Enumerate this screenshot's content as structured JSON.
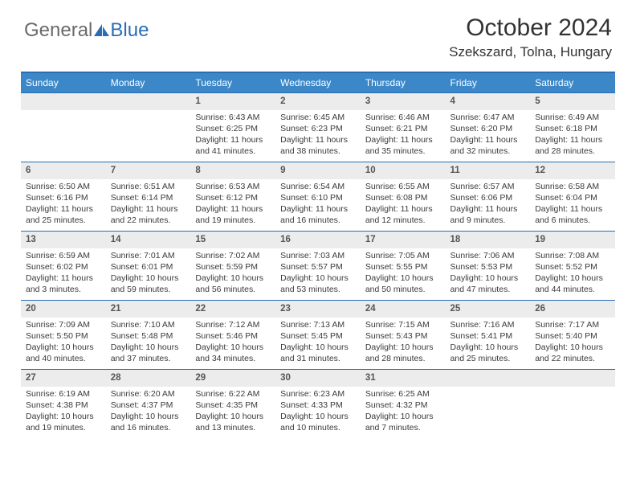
{
  "brand": {
    "part1": "General",
    "part2": "Blue"
  },
  "title": "October 2024",
  "location": "Szekszard, Tolna, Hungary",
  "colors": {
    "header_bg": "#3b87c8",
    "accent": "#2a6db5",
    "daynum_bg": "#ececec"
  },
  "weekdays": [
    "Sunday",
    "Monday",
    "Tuesday",
    "Wednesday",
    "Thursday",
    "Friday",
    "Saturday"
  ],
  "first_day_index": 2,
  "days": [
    {
      "n": 1,
      "sunrise": "6:43 AM",
      "sunset": "6:25 PM",
      "daylight": "11 hours and 41 minutes."
    },
    {
      "n": 2,
      "sunrise": "6:45 AM",
      "sunset": "6:23 PM",
      "daylight": "11 hours and 38 minutes."
    },
    {
      "n": 3,
      "sunrise": "6:46 AM",
      "sunset": "6:21 PM",
      "daylight": "11 hours and 35 minutes."
    },
    {
      "n": 4,
      "sunrise": "6:47 AM",
      "sunset": "6:20 PM",
      "daylight": "11 hours and 32 minutes."
    },
    {
      "n": 5,
      "sunrise": "6:49 AM",
      "sunset": "6:18 PM",
      "daylight": "11 hours and 28 minutes."
    },
    {
      "n": 6,
      "sunrise": "6:50 AM",
      "sunset": "6:16 PM",
      "daylight": "11 hours and 25 minutes."
    },
    {
      "n": 7,
      "sunrise": "6:51 AM",
      "sunset": "6:14 PM",
      "daylight": "11 hours and 22 minutes."
    },
    {
      "n": 8,
      "sunrise": "6:53 AM",
      "sunset": "6:12 PM",
      "daylight": "11 hours and 19 minutes."
    },
    {
      "n": 9,
      "sunrise": "6:54 AM",
      "sunset": "6:10 PM",
      "daylight": "11 hours and 16 minutes."
    },
    {
      "n": 10,
      "sunrise": "6:55 AM",
      "sunset": "6:08 PM",
      "daylight": "11 hours and 12 minutes."
    },
    {
      "n": 11,
      "sunrise": "6:57 AM",
      "sunset": "6:06 PM",
      "daylight": "11 hours and 9 minutes."
    },
    {
      "n": 12,
      "sunrise": "6:58 AM",
      "sunset": "6:04 PM",
      "daylight": "11 hours and 6 minutes."
    },
    {
      "n": 13,
      "sunrise": "6:59 AM",
      "sunset": "6:02 PM",
      "daylight": "11 hours and 3 minutes."
    },
    {
      "n": 14,
      "sunrise": "7:01 AM",
      "sunset": "6:01 PM",
      "daylight": "10 hours and 59 minutes."
    },
    {
      "n": 15,
      "sunrise": "7:02 AM",
      "sunset": "5:59 PM",
      "daylight": "10 hours and 56 minutes."
    },
    {
      "n": 16,
      "sunrise": "7:03 AM",
      "sunset": "5:57 PM",
      "daylight": "10 hours and 53 minutes."
    },
    {
      "n": 17,
      "sunrise": "7:05 AM",
      "sunset": "5:55 PM",
      "daylight": "10 hours and 50 minutes."
    },
    {
      "n": 18,
      "sunrise": "7:06 AM",
      "sunset": "5:53 PM",
      "daylight": "10 hours and 47 minutes."
    },
    {
      "n": 19,
      "sunrise": "7:08 AM",
      "sunset": "5:52 PM",
      "daylight": "10 hours and 44 minutes."
    },
    {
      "n": 20,
      "sunrise": "7:09 AM",
      "sunset": "5:50 PM",
      "daylight": "10 hours and 40 minutes."
    },
    {
      "n": 21,
      "sunrise": "7:10 AM",
      "sunset": "5:48 PM",
      "daylight": "10 hours and 37 minutes."
    },
    {
      "n": 22,
      "sunrise": "7:12 AM",
      "sunset": "5:46 PM",
      "daylight": "10 hours and 34 minutes."
    },
    {
      "n": 23,
      "sunrise": "7:13 AM",
      "sunset": "5:45 PM",
      "daylight": "10 hours and 31 minutes."
    },
    {
      "n": 24,
      "sunrise": "7:15 AM",
      "sunset": "5:43 PM",
      "daylight": "10 hours and 28 minutes."
    },
    {
      "n": 25,
      "sunrise": "7:16 AM",
      "sunset": "5:41 PM",
      "daylight": "10 hours and 25 minutes."
    },
    {
      "n": 26,
      "sunrise": "7:17 AM",
      "sunset": "5:40 PM",
      "daylight": "10 hours and 22 minutes."
    },
    {
      "n": 27,
      "sunrise": "6:19 AM",
      "sunset": "4:38 PM",
      "daylight": "10 hours and 19 minutes."
    },
    {
      "n": 28,
      "sunrise": "6:20 AM",
      "sunset": "4:37 PM",
      "daylight": "10 hours and 16 minutes."
    },
    {
      "n": 29,
      "sunrise": "6:22 AM",
      "sunset": "4:35 PM",
      "daylight": "10 hours and 13 minutes."
    },
    {
      "n": 30,
      "sunrise": "6:23 AM",
      "sunset": "4:33 PM",
      "daylight": "10 hours and 10 minutes."
    },
    {
      "n": 31,
      "sunrise": "6:25 AM",
      "sunset": "4:32 PM",
      "daylight": "10 hours and 7 minutes."
    }
  ],
  "labels": {
    "sunrise": "Sunrise:",
    "sunset": "Sunset:",
    "daylight": "Daylight:"
  }
}
